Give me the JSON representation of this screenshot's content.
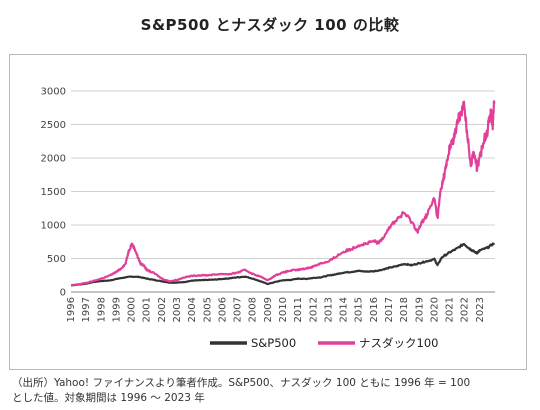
{
  "title": "S&P500 とナスダック 100 の比較",
  "caption_lines": [
    "（出所）Yahoo! ファイナンスより筆者作成。S&P500、ナスダック 100 ともに 1996 年 = 100",
    "とした値。対象期間は 1996 〜 2023 年"
  ],
  "colors": {
    "sp500": "#333333",
    "nasdaq": "#e0409a",
    "grid": "#d0d0d0",
    "axis": "#888888"
  },
  "chart_data": {
    "type": "line",
    "xlim": [
      1996,
      2024
    ],
    "ylim": [
      0,
      3000
    ],
    "y_ticks": [
      "0",
      "500",
      "1000",
      "1500",
      "2000",
      "2500",
      "3000"
    ],
    "x_tick_labels": [
      "1996",
      "1997",
      "1998",
      "1999",
      "2000",
      "2001",
      "2002",
      "2003",
      "2004",
      "2005",
      "2006",
      "2007",
      "2008",
      "2009",
      "2010",
      "2011",
      "2012",
      "2013",
      "2014",
      "2015",
      "2016",
      "2017",
      "2018",
      "2019",
      "2020",
      "2021",
      "2022",
      "2023"
    ],
    "grid": "horizontal",
    "legend_position": "bottom",
    "series": [
      {
        "name": "S&P500",
        "color": "#333333",
        "x": [
          1996,
          1996.5,
          1997,
          1997.5,
          1998,
          1998.5,
          1999,
          1999.5,
          2000,
          2000.5,
          2001,
          2001.5,
          2002,
          2002.5,
          2003,
          2003.5,
          2004,
          2004.5,
          2005,
          2005.5,
          2006,
          2006.5,
          2007,
          2007.5,
          2008,
          2008.5,
          2009,
          2009.5,
          2010,
          2010.5,
          2011,
          2011.5,
          2012,
          2012.5,
          2013,
          2013.5,
          2014,
          2014.5,
          2015,
          2015.5,
          2016,
          2016.5,
          2017,
          2017.5,
          2018,
          2018.5,
          2019,
          2019.5,
          2020,
          2020.2,
          2020.5,
          2021,
          2021.5,
          2021.95,
          2022.3,
          2022.5,
          2022.8,
          2023,
          2023.5,
          2023.95
        ],
        "y": [
          100,
          110,
          125,
          150,
          165,
          170,
          195,
          215,
          230,
          225,
          200,
          180,
          160,
          140,
          140,
          150,
          170,
          175,
          180,
          185,
          195,
          205,
          220,
          230,
          200,
          160,
          120,
          150,
          175,
          180,
          200,
          195,
          210,
          220,
          245,
          265,
          290,
          300,
          315,
          305,
          310,
          330,
          360,
          385,
          420,
          400,
          430,
          460,
          490,
          400,
          520,
          590,
          650,
          720,
          650,
          620,
          580,
          620,
          660,
          730
        ]
      },
      {
        "name": "ナスダック100",
        "color": "#e0409a",
        "x": [
          1996,
          1996.5,
          1997,
          1997.5,
          1998,
          1998.5,
          1999,
          1999.3,
          1999.6,
          1999.8,
          2000,
          2000.2,
          2000.4,
          2000.6,
          2000.8,
          2001,
          2001.5,
          2002,
          2002.5,
          2003,
          2003.5,
          2004,
          2004.5,
          2005,
          2005.5,
          2006,
          2006.5,
          2007,
          2007.5,
          2008,
          2008.5,
          2009,
          2009.5,
          2010,
          2010.5,
          2011,
          2011.5,
          2012,
          2012.5,
          2013,
          2013.5,
          2014,
          2014.5,
          2015,
          2015.5,
          2016,
          2016.3,
          2016.5,
          2017,
          2017.5,
          2018,
          2018.5,
          2018.9,
          2019.2,
          2019.5,
          2020,
          2020.2,
          2020.4,
          2020.6,
          2020.8,
          2021,
          2021.3,
          2021.6,
          2021.8,
          2021.95,
          2022.2,
          2022.4,
          2022.6,
          2022.8,
          2023,
          2023.3,
          2023.5,
          2023.7,
          2023.85,
          2023.95
        ],
        "y": [
          100,
          115,
          135,
          165,
          200,
          240,
          300,
          350,
          420,
          600,
          720,
          650,
          530,
          420,
          400,
          330,
          280,
          200,
          160,
          180,
          220,
          240,
          250,
          250,
          260,
          270,
          265,
          290,
          330,
          270,
          230,
          175,
          250,
          290,
          320,
          330,
          350,
          380,
          430,
          450,
          530,
          600,
          640,
          700,
          720,
          760,
          730,
          780,
          960,
          1080,
          1180,
          1050,
          900,
          1050,
          1150,
          1400,
          1100,
          1500,
          1700,
          1900,
          2150,
          2300,
          2600,
          2700,
          2800,
          2300,
          1900,
          2100,
          1850,
          2000,
          2300,
          2400,
          2700,
          2500,
          2850
        ]
      }
    ]
  }
}
